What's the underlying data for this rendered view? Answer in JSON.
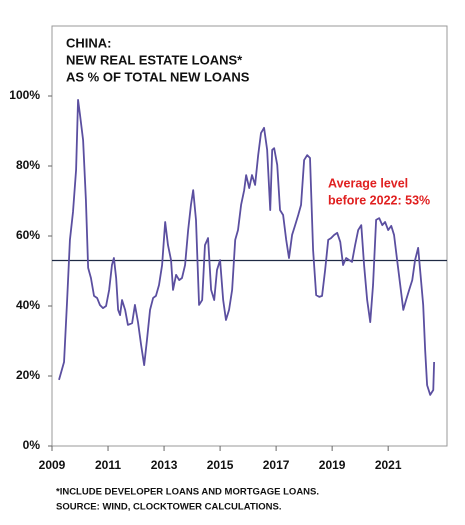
{
  "chart_data": {
    "type": "line",
    "title": [
      "CHINA:",
      "NEW REAL ESTATE LOANS*",
      "AS % OF TOTAL NEW LOANS"
    ],
    "annotation": [
      "Average level",
      "before 2022: 53%"
    ],
    "notes": [
      "*INCLUDE DEVELOPER LOANS AND MORTGAGE LOANS.",
      "SOURCE: WIND, CLOCKTOWER CALCULATIONS."
    ],
    "average": 53,
    "average_color": "#1f2a44",
    "xlim": [
      2009,
      2023.1
    ],
    "xticks": [
      2009,
      2011,
      2013,
      2015,
      2017,
      2019,
      2021
    ],
    "ylim": [
      0,
      120
    ],
    "yticks": [
      {
        "value": 0,
        "label": "0%"
      },
      {
        "value": 20,
        "label": "20%"
      },
      {
        "value": 40,
        "label": "40%"
      },
      {
        "value": 60,
        "label": "60%"
      },
      {
        "value": 80,
        "label": "80%"
      },
      {
        "value": 100,
        "label": "100%"
      }
    ],
    "x": [
      2009.25,
      2009.43,
      2009.54,
      2009.64,
      2009.75,
      2009.86,
      2009.93,
      2010.0,
      2010.11,
      2010.21,
      2010.29,
      2010.39,
      2010.5,
      2010.61,
      2010.71,
      2010.82,
      2010.93,
      2011.04,
      2011.14,
      2011.21,
      2011.29,
      2011.36,
      2011.43,
      2011.5,
      2011.61,
      2011.71,
      2011.86,
      2011.96,
      2012.07,
      2012.18,
      2012.29,
      2012.39,
      2012.5,
      2012.61,
      2012.71,
      2012.82,
      2012.93,
      2013.04,
      2013.14,
      2013.25,
      2013.32,
      2013.43,
      2013.54,
      2013.64,
      2013.75,
      2013.86,
      2013.96,
      2014.04,
      2014.14,
      2014.25,
      2014.36,
      2014.46,
      2014.57,
      2014.68,
      2014.79,
      2014.89,
      2015.0,
      2015.11,
      2015.21,
      2015.32,
      2015.43,
      2015.54,
      2015.64,
      2015.75,
      2015.86,
      2015.93,
      2016.04,
      2016.14,
      2016.25,
      2016.36,
      2016.46,
      2016.57,
      2016.68,
      2016.79,
      2016.86,
      2016.93,
      2017.04,
      2017.14,
      2017.25,
      2017.36,
      2017.46,
      2017.57,
      2017.68,
      2017.79,
      2017.89,
      2018.0,
      2018.11,
      2018.21,
      2018.32,
      2018.43,
      2018.54,
      2018.64,
      2018.75,
      2018.86,
      2018.96,
      2019.07,
      2019.18,
      2019.29,
      2019.39,
      2019.5,
      2019.61,
      2019.71,
      2019.82,
      2019.93,
      2020.04,
      2020.14,
      2020.25,
      2020.36,
      2020.46,
      2020.57,
      2020.68,
      2020.79,
      2020.89,
      2021.0,
      2021.11,
      2021.21,
      2021.32,
      2021.43,
      2021.54,
      2021.64,
      2021.75,
      2021.86,
      2021.96,
      2022.07,
      2022.14,
      2022.25,
      2022.32,
      2022.39,
      2022.5,
      2022.61,
      2022.64
    ],
    "series": [
      {
        "name": "New real estate loans",
        "color": "#5b4fa0",
        "values": [
          18.9,
          24,
          41.7,
          58.9,
          66.9,
          78.9,
          98.9,
          94.6,
          87.4,
          70.3,
          50.9,
          48,
          42.9,
          42.3,
          40.3,
          39.4,
          40,
          44.6,
          51.7,
          53.7,
          48,
          38.9,
          37.4,
          41.7,
          38.9,
          34.6,
          35.1,
          40.3,
          35.4,
          28.9,
          23.1,
          30.3,
          38.9,
          42.3,
          42.9,
          46,
          51.7,
          64,
          57.4,
          53.1,
          44.6,
          48.9,
          47.4,
          48,
          51.7,
          61.7,
          68.9,
          73.1,
          64.6,
          40.3,
          41.7,
          57.4,
          59.4,
          44.6,
          41.7,
          50.3,
          53.1,
          41.7,
          36,
          38.9,
          44.6,
          58.9,
          61.7,
          68.9,
          73.1,
          77.4,
          73.7,
          77.4,
          74.6,
          83.1,
          89.4,
          90.9,
          84.6,
          67.4,
          84.6,
          85.1,
          80.3,
          67.4,
          66,
          58.9,
          53.7,
          60.3,
          63.1,
          66,
          68.9,
          81.7,
          83.1,
          82.3,
          56,
          43.1,
          42.6,
          42.9,
          50.3,
          58.9,
          59.4,
          60.3,
          60.9,
          58.3,
          51.7,
          53.7,
          53.1,
          52.6,
          57.4,
          61.7,
          63.1,
          51.7,
          41.7,
          35.4,
          46,
          64.6,
          65.1,
          63.1,
          64,
          61.7,
          62.9,
          60.3,
          53.1,
          46,
          38.9,
          41.7,
          44.6,
          47.4,
          53.1,
          56.6,
          50.3,
          40.3,
          27.4,
          17.4,
          14.6,
          16,
          24
        ]
      }
    ]
  }
}
